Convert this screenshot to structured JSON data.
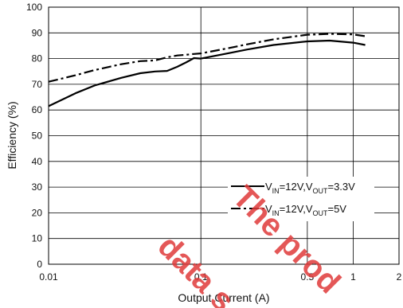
{
  "chart_data": {
    "type": "line",
    "xscale": "log",
    "xlim": [
      0.01,
      2
    ],
    "ylim": [
      0,
      100
    ],
    "x_ticks": [
      "0.01",
      "0.1",
      "0.5",
      "1",
      "2"
    ],
    "x_tick_values": [
      0.01,
      0.1,
      0.5,
      1,
      2
    ],
    "x_grid_values": [
      0.01,
      0.1,
      0.5,
      1
    ],
    "y_ticks": [
      "0",
      "10",
      "20",
      "30",
      "40",
      "50",
      "60",
      "70",
      "80",
      "90",
      "100"
    ],
    "y_tick_values": [
      0,
      10,
      20,
      30,
      40,
      50,
      60,
      70,
      80,
      90,
      100
    ],
    "xlabel": "Output Current (A)",
    "ylabel": "Efficiency (%)",
    "grid": true,
    "legend_position": "bottom-right",
    "series": [
      {
        "name": "VIN=12V,VOUT=3.3V",
        "legend": {
          "v1": "V",
          "s1": "IN",
          "mid": "=12V,V",
          "s2": "OUT",
          "end": "=3.3V"
        },
        "style": "solid",
        "color": "#000000",
        "x": [
          0.01,
          0.015,
          0.02,
          0.03,
          0.04,
          0.05,
          0.06,
          0.07,
          0.08,
          0.09,
          0.1,
          0.15,
          0.2,
          0.3,
          0.5,
          0.7,
          1.0,
          1.2
        ],
        "y": [
          61.5,
          66.5,
          69.5,
          72.5,
          74.3,
          75.0,
          75.2,
          76.8,
          78.5,
          80.2,
          80.0,
          82.0,
          83.5,
          85.3,
          86.7,
          87.0,
          86.2,
          85.3
        ]
      },
      {
        "name": "VIN=12V,VOUT=5V",
        "legend": {
          "v1": "V",
          "s1": "IN",
          "mid": "=12V,V",
          "s2": "OUT",
          "end": "=5V"
        },
        "style": "dashdot",
        "color": "#000000",
        "x": [
          0.01,
          0.015,
          0.02,
          0.03,
          0.04,
          0.05,
          0.06,
          0.07,
          0.08,
          0.09,
          0.1,
          0.15,
          0.2,
          0.3,
          0.5,
          0.7,
          1.0,
          1.2
        ],
        "y": [
          71.0,
          73.5,
          75.5,
          77.8,
          79.0,
          79.3,
          80.5,
          81.2,
          81.5,
          81.8,
          82.0,
          84.0,
          85.5,
          87.5,
          89.3,
          89.6,
          89.4,
          88.7
        ]
      }
    ]
  },
  "watermark": {
    "line1": "The prod",
    "line2": "data s",
    "color": "#e03a3a"
  }
}
